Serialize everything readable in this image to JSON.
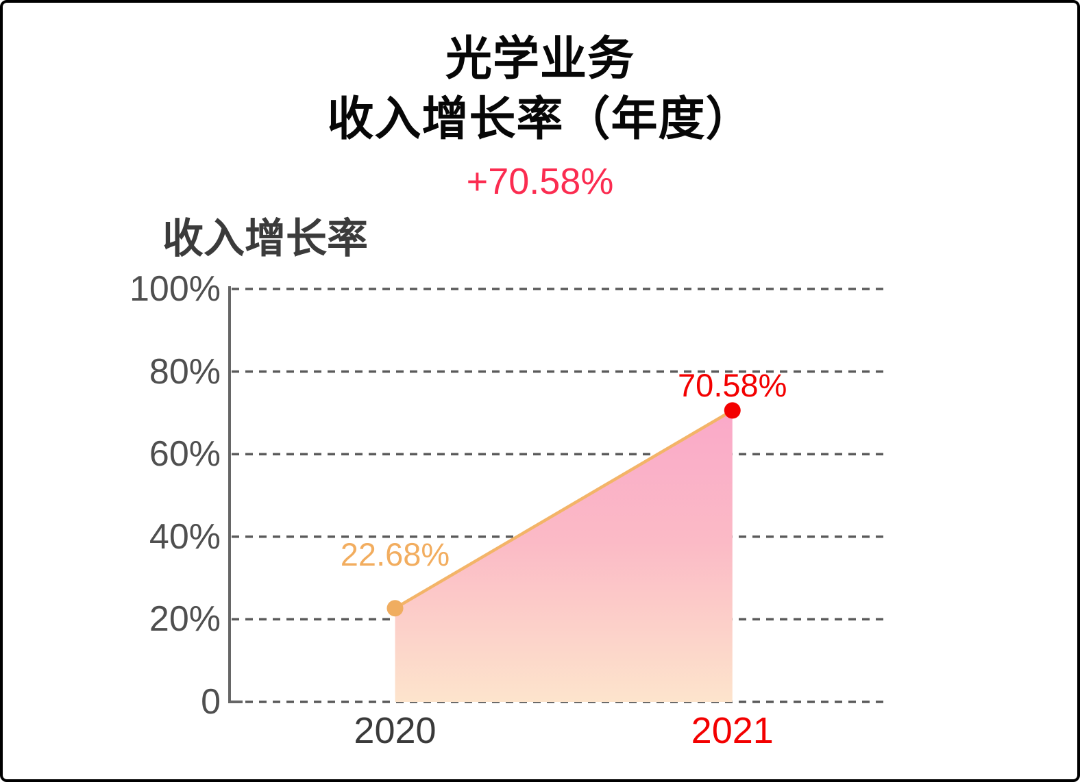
{
  "page": {
    "background": "#ffffff",
    "border_color": "#000000"
  },
  "header": {
    "title_line1": "光学业务",
    "title_line2": "收入增长率（年度）",
    "change_badge": "+70.58%",
    "change_color": "#FB2C50"
  },
  "legend": {
    "label": "收入增长率"
  },
  "chart_data": {
    "type": "area",
    "title": "光学业务 收入增长率（年度）",
    "series_name": "收入增长率",
    "categories": [
      "2020",
      "2021"
    ],
    "values": [
      22.68,
      70.58
    ],
    "point_labels": [
      "22.68%",
      "70.58%"
    ],
    "yticks": [
      "100%",
      "80%",
      "60%",
      "40%",
      "20%",
      "0"
    ],
    "ytick_values": [
      100,
      80,
      60,
      40,
      20,
      0
    ],
    "ylim": [
      0,
      100
    ],
    "grid": "horizontal dashed",
    "legend_position": "top-left",
    "colors": {
      "grid": "#5A5A5A",
      "axis": "#666666",
      "tick_text": "#4F4F4F",
      "line": "#F3B468",
      "fill_top": "#FAA9C9",
      "fill_mid": "#FBBAC6",
      "fill_bottom": "#FDE4CC",
      "points": [
        "#F0AD60",
        "#F30000"
      ],
      "point_label_colors": [
        "#F2AD5F",
        "#F30000"
      ],
      "category_label_colors": [
        "#3A3A3A",
        "#F30000"
      ],
      "legend_text": "#3B3B3B",
      "title_text": "#070707"
    }
  }
}
